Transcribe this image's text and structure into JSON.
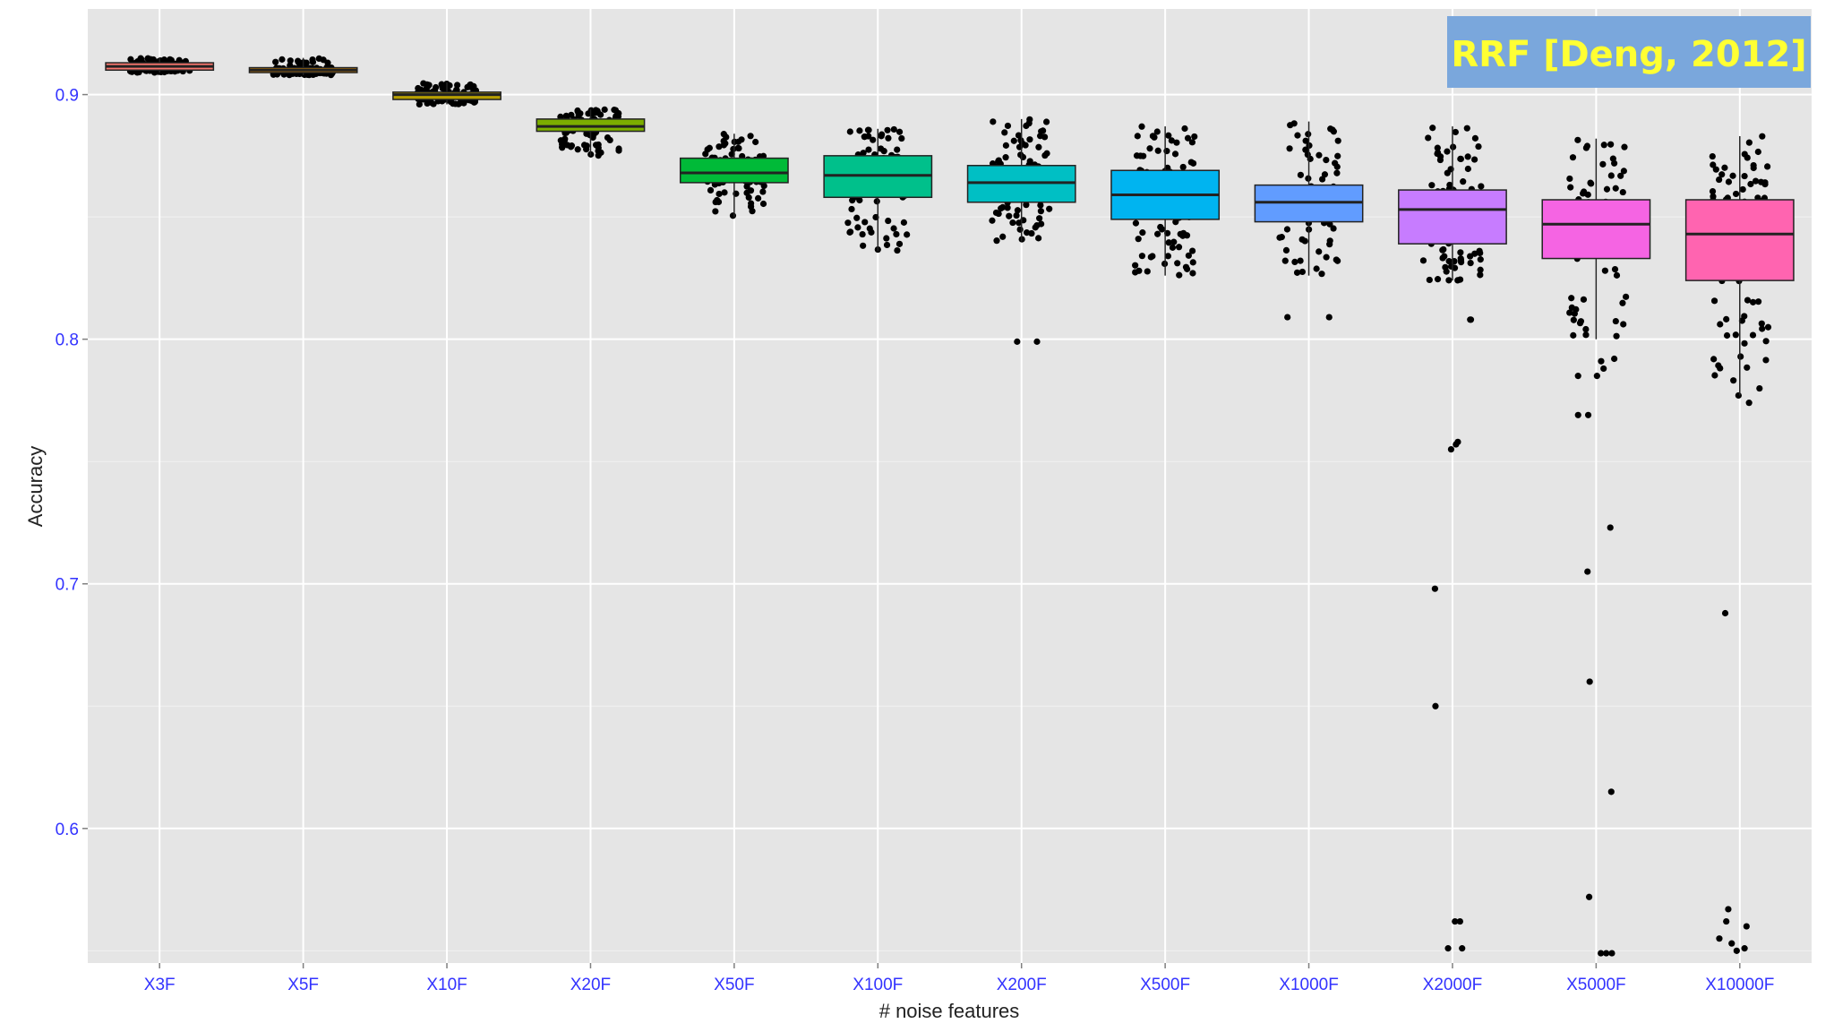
{
  "chart_data": {
    "type": "boxplot",
    "xlabel": "# noise features",
    "ylabel": "Accuracy",
    "ylim": [
      0.545,
      0.935
    ],
    "yticks": [
      0.6,
      0.7,
      0.8,
      0.9
    ],
    "ytick_labels": [
      "0.6",
      "0.7",
      "0.8",
      "0.9"
    ],
    "grid": true,
    "legend": "none",
    "annotation": {
      "text": "RRF [Deng, 2012]",
      "placement": "top-right",
      "background": "#7aa7dc",
      "color": "#ffff33"
    },
    "categories": [
      "X3F",
      "X5F",
      "X10F",
      "X20F",
      "X50F",
      "X100F",
      "X200F",
      "X500F",
      "X1000F",
      "X2000F",
      "X5000F",
      "X10000F"
    ],
    "boxes": [
      {
        "category": "X3F",
        "color": "#f8766d",
        "q1": 0.91,
        "median": 0.9115,
        "q3": 0.913,
        "whisker_low": 0.909,
        "whisker_high": 0.915,
        "outliers": []
      },
      {
        "category": "X5F",
        "color": "#de8c00",
        "q1": 0.909,
        "median": 0.91,
        "q3": 0.911,
        "whisker_low": 0.908,
        "whisker_high": 0.915,
        "outliers": []
      },
      {
        "category": "X10F",
        "color": "#b79f00",
        "q1": 0.898,
        "median": 0.9,
        "q3": 0.901,
        "whisker_low": 0.896,
        "whisker_high": 0.905,
        "outliers": []
      },
      {
        "category": "X20F",
        "color": "#7cae00",
        "q1": 0.885,
        "median": 0.887,
        "q3": 0.89,
        "whisker_low": 0.875,
        "whisker_high": 0.894,
        "outliers": []
      },
      {
        "category": "X50F",
        "color": "#00ba38",
        "q1": 0.864,
        "median": 0.868,
        "q3": 0.874,
        "whisker_low": 0.85,
        "whisker_high": 0.884,
        "outliers": []
      },
      {
        "category": "X100F",
        "color": "#00c08b",
        "q1": 0.858,
        "median": 0.867,
        "q3": 0.875,
        "whisker_low": 0.836,
        "whisker_high": 0.886,
        "outliers": []
      },
      {
        "category": "X200F",
        "color": "#00bfc4",
        "q1": 0.856,
        "median": 0.864,
        "q3": 0.871,
        "whisker_low": 0.84,
        "whisker_high": 0.89,
        "outliers": [
          0.799,
          0.799
        ]
      },
      {
        "category": "X500F",
        "color": "#00b4f0",
        "q1": 0.849,
        "median": 0.859,
        "q3": 0.869,
        "whisker_low": 0.826,
        "whisker_high": 0.887,
        "outliers": []
      },
      {
        "category": "X1000F",
        "color": "#619cff",
        "q1": 0.848,
        "median": 0.856,
        "q3": 0.863,
        "whisker_low": 0.826,
        "whisker_high": 0.889,
        "outliers": [
          0.809,
          0.809
        ]
      },
      {
        "category": "X2000F",
        "color": "#c77cff",
        "q1": 0.839,
        "median": 0.853,
        "q3": 0.861,
        "whisker_low": 0.824,
        "whisker_high": 0.887,
        "outliers": [
          0.808,
          0.808,
          0.758,
          0.757,
          0.755,
          0.698,
          0.65,
          0.562,
          0.562,
          0.551,
          0.551
        ]
      },
      {
        "category": "X5000F",
        "color": "#f564e3",
        "q1": 0.833,
        "median": 0.847,
        "q3": 0.857,
        "whisker_low": 0.8,
        "whisker_high": 0.882,
        "outliers": [
          0.792,
          0.791,
          0.788,
          0.785,
          0.785,
          0.769,
          0.769,
          0.723,
          0.705,
          0.66,
          0.615,
          0.572,
          0.549,
          0.549,
          0.549
        ]
      },
      {
        "category": "X10000F",
        "color": "#ff64b0",
        "q1": 0.824,
        "median": 0.843,
        "q3": 0.857,
        "whisker_low": 0.777,
        "whisker_high": 0.883,
        "outliers": [
          0.777,
          0.774,
          0.688,
          0.567,
          0.562,
          0.56,
          0.555,
          0.553,
          0.551,
          0.55
        ]
      }
    ]
  }
}
